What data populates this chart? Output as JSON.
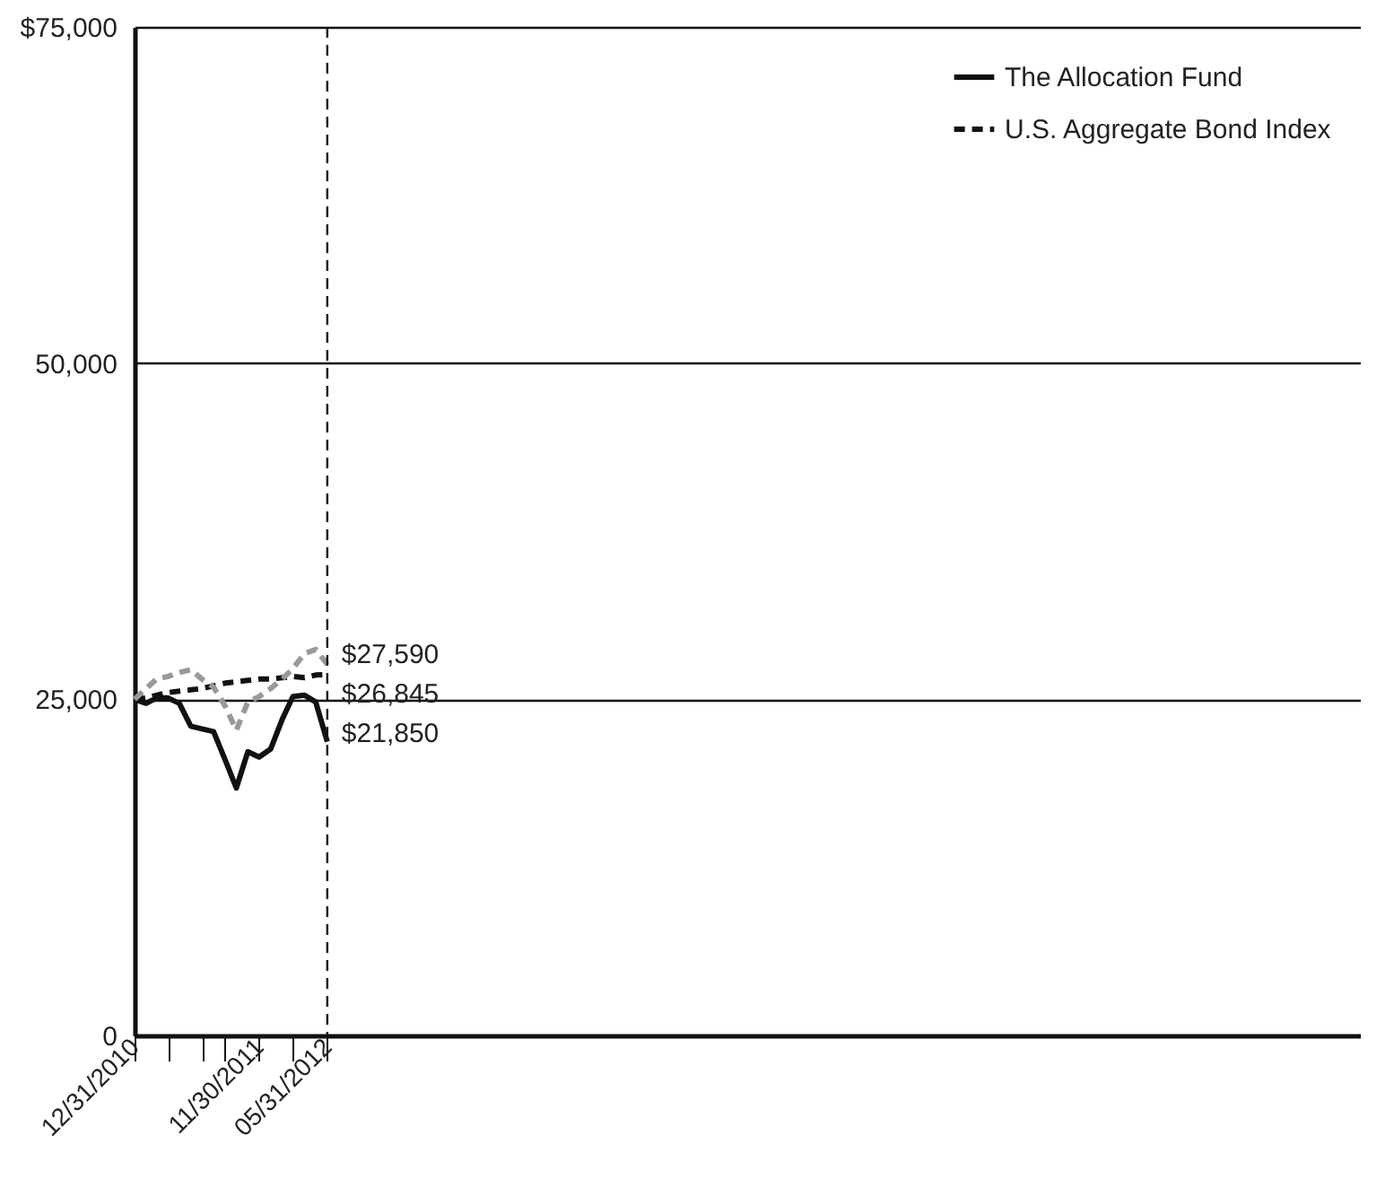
{
  "chart_data": {
    "type": "line",
    "x": [
      "2010-12-31",
      "2011-01-31",
      "2011-02-28",
      "2011-03-31",
      "2011-04-30",
      "2011-05-31",
      "2011-06-30",
      "2011-07-31",
      "2011-08-31",
      "2011-09-30",
      "2011-10-31",
      "2011-11-30",
      "2011-12-31",
      "2012-01-31",
      "2012-02-29",
      "2012-03-31",
      "2012-04-30",
      "2012-05-31"
    ],
    "series": [
      {
        "name": "The Allocation Fund",
        "color": "#111111",
        "line_style": "solid",
        "values": [
          25000,
          24700,
          25100,
          25100,
          24700,
          23000,
          22800,
          22600,
          20500,
          18400,
          21100,
          20700,
          21300,
          23500,
          25200,
          25300,
          24800,
          21850
        ]
      },
      {
        "name": "U.S. Aggregate Bond Index",
        "color": "#111111",
        "line_style": "dashed",
        "values": [
          25000,
          25100,
          25300,
          25500,
          25600,
          25700,
          25800,
          26000,
          26200,
          26300,
          26400,
          26500,
          26500,
          26600,
          26700,
          26600,
          26800,
          26845
        ]
      },
      {
        "color": "#999999",
        "line_style": "dashed",
        "values": [
          25000,
          25800,
          26500,
          26700,
          27000,
          27200,
          26500,
          25900,
          24500,
          22700,
          24800,
          25200,
          25800,
          26500,
          27300,
          28400,
          28700,
          27590
        ]
      }
    ],
    "xlim": [
      "2010-12-31",
      "2019-12-31"
    ],
    "xticks": [
      {
        "value": "2010-12-31",
        "label": "12/31/2010"
      },
      {
        "value": "2011-03-31",
        "label": null
      },
      {
        "value": "2011-06-30",
        "label": null
      },
      {
        "value": "2011-08-31",
        "label": null
      },
      {
        "value": "2011-11-30",
        "label": "11/30/2011"
      },
      {
        "value": "2012-02-29",
        "label": null
      },
      {
        "value": "2012-05-31",
        "label": "05/31/2012"
      }
    ],
    "ylim": [
      0,
      75000
    ],
    "yticks": [
      0,
      {
        "value": 25000,
        "label": "25,000"
      },
      {
        "value": 50000,
        "label": "50,000"
      },
      {
        "value": 75000,
        "label": "$75,000"
      }
    ],
    "grid": "y",
    "legend": "top right",
    "ref_lines": [
      {
        "axis": "x",
        "value": "2012-05-31",
        "line_style": "dashed",
        "color": "#111111"
      }
    ],
    "annotations": [
      {
        "text": "$27,590",
        "x": "2012-05-31",
        "y": 27590
      },
      {
        "text": "$26,845",
        "x": "2012-05-31",
        "y": 26845
      },
      {
        "text": "$21,850",
        "x": "2012-05-31",
        "y": 21850
      }
    ]
  }
}
